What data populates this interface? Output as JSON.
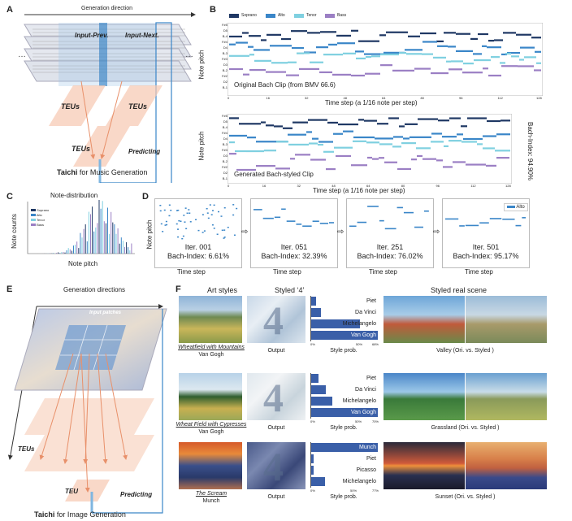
{
  "panel_a": {
    "label": "A",
    "direction": "Generation direction",
    "input_prev": "Input-Prev.",
    "input_next": "Input-Next.",
    "teu": "TEUs",
    "predicting": "Predicting",
    "title_bold": "Taichi",
    "title_rest": " for Music Generation"
  },
  "panel_b": {
    "label": "B",
    "legend": [
      "Soprano",
      "Alto",
      "Tenor",
      "Bass"
    ],
    "colors": {
      "soprano": "#1f3864",
      "alto": "#3a86c8",
      "tenor": "#7fd0e0",
      "bass": "#9b7fc4"
    },
    "ylabel": "Note pitch",
    "xlabel": "Time step (a 1/16 note per step)",
    "pitch_ticks": [
      "F#5",
      "D5",
      "B-4",
      "F#4",
      "D4",
      "B-3",
      "F#3",
      "D3",
      "B-2",
      "F#2",
      "D2",
      "B-1"
    ],
    "time_ticks": [
      "0",
      "16",
      "32",
      "48",
      "64",
      "80",
      "96",
      "112",
      "128"
    ],
    "clip1_caption": "Original Bach Clip (from BMV 66.6)",
    "clip2_caption": "Generated Bach-styled Clip",
    "bach_index": "Bach-Index: 94.90%"
  },
  "panel_c": {
    "label": "C",
    "title": "Note-distribution",
    "ylabel": "Note counts",
    "xlabel": "Note pitch",
    "legend": [
      "Soprano",
      "Alto",
      "Tenor",
      "Bass"
    ]
  },
  "panel_d": {
    "label": "D",
    "ylabel": "Note pitch",
    "xlabel": "Time step",
    "legend": "Alto",
    "iters": [
      {
        "iter": "Iter. 001",
        "index": "Bach-Index: 6.61%"
      },
      {
        "iter": "Iter. 051",
        "index": "Bach-Index: 32.39%"
      },
      {
        "iter": "Iter. 251",
        "index": "Bach-Index: 76.02%"
      },
      {
        "iter": "Iter. 501",
        "index": "Bach-Index: 95.17%"
      }
    ]
  },
  "panel_e": {
    "label": "E",
    "direction": "Generation directions",
    "input": "Input patches",
    "teu": "TEUs",
    "teu_single": "TEU",
    "predicting": "Predicting",
    "title_bold": "Taichi",
    "title_rest": " for Image Generation"
  },
  "panel_f": {
    "label": "F",
    "col_art": "Art styles",
    "col_styled": "Styled ‘4’",
    "col_real": "Styled real scene",
    "output": "Output",
    "style_prob": "Style prob.",
    "rows": [
      {
        "painting": "Wheatfield with Mountains",
        "artist": "Van Gogh",
        "axis": [
          "0%",
          "50%",
          "68%"
        ],
        "bars": [
          {
            "label": "Piet",
            "value": 5,
            "highlight": false
          },
          {
            "label": "Da Vinci",
            "value": 10,
            "highlight": false
          },
          {
            "label": "Michelangelo",
            "value": 50,
            "highlight": false
          },
          {
            "label": "Van Gogh",
            "value": 68,
            "highlight": true
          }
        ],
        "max": 68,
        "scene": "Valley (Ori. vs. Styled )"
      },
      {
        "painting": "Wheat Field with Cypresses",
        "artist": "Van Gogh",
        "axis": [
          "0%",
          "50%",
          "70%"
        ],
        "bars": [
          {
            "label": "Piet",
            "value": 8,
            "highlight": false
          },
          {
            "label": "Da Vinci",
            "value": 15,
            "highlight": false
          },
          {
            "label": "Michelangelo",
            "value": 22,
            "highlight": false
          },
          {
            "label": "Van Gogh",
            "value": 70,
            "highlight": true
          }
        ],
        "max": 70,
        "scene": "Grassland (Ori. vs. Styled )"
      },
      {
        "painting": "The Scream",
        "artist": "Munch",
        "axis": [
          "0%",
          "50%",
          "77%"
        ],
        "bars": [
          {
            "label": "Munch",
            "value": 77,
            "highlight": true
          },
          {
            "label": "Piet",
            "value": 3,
            "highlight": false
          },
          {
            "label": "Picasso",
            "value": 3,
            "highlight": false
          },
          {
            "label": "Michelangelo",
            "value": 16,
            "highlight": false
          }
        ],
        "max": 77,
        "scene": "Sunset (Ori. vs. Styled )"
      }
    ]
  }
}
